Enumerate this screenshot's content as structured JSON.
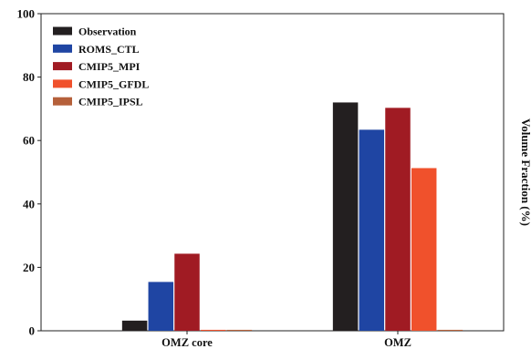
{
  "chart_data": {
    "type": "bar",
    "categories": [
      "OMZ core",
      "OMZ"
    ],
    "series": [
      {
        "name": "Observation",
        "color": "#231f20",
        "values": [
          3.2,
          72.0
        ]
      },
      {
        "name": "ROMS_CTL",
        "color": "#1f45a3",
        "values": [
          15.4,
          63.4
        ]
      },
      {
        "name": "CMIP5_MPI",
        "color": "#a01b23",
        "values": [
          24.3,
          70.3
        ]
      },
      {
        "name": "CMIP5_GFDL",
        "color": "#f0512c",
        "values": [
          0.3,
          51.3
        ]
      },
      {
        "name": "CMIP5_IPSL",
        "color": "#b5603a",
        "values": [
          0.3,
          0.3
        ]
      }
    ],
    "ylabel": "Volume Fraction (%)",
    "xlabel": "",
    "ylim": [
      0,
      100
    ],
    "yticks": [
      0,
      20,
      40,
      60,
      80,
      100
    ],
    "grid": false,
    "legend_position": "top-left"
  }
}
